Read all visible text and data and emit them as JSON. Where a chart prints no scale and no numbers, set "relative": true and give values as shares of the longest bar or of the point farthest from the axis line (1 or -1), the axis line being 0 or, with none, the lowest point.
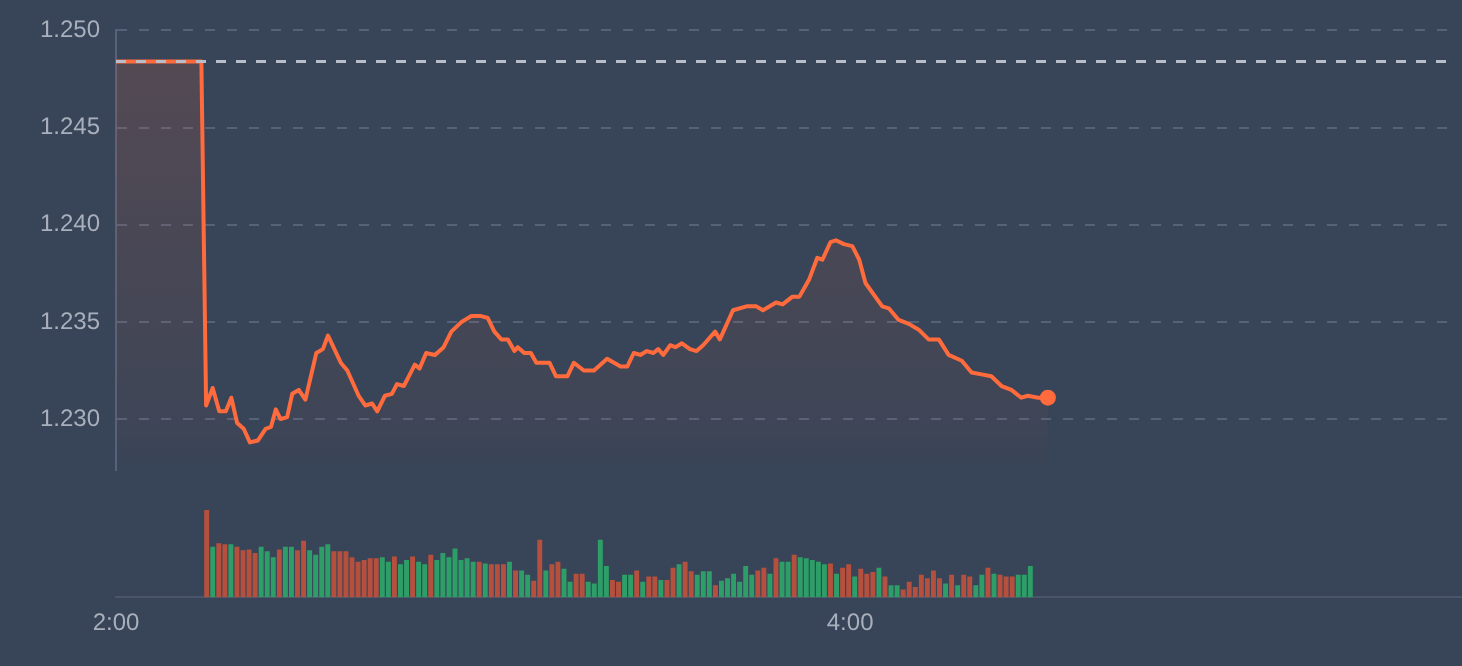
{
  "chart_data": [
    {
      "type": "area",
      "xlim": [
        2,
        5.667
      ],
      "ylim": [
        1.2274,
        1.25
      ],
      "yticks": [
        {
          "value": 1.23,
          "label": "1.230"
        },
        1.235,
        {
          "value": 1.24,
          "label": "1.240"
        },
        1.245,
        {
          "value": 1.25,
          "label": "1.250"
        }
      ],
      "tick_labels": "y",
      "grid": "y",
      "legend": false,
      "ref_lines": [
        {
          "axis": "y",
          "value": 1.2484,
          "line_style": "dashed",
          "color": "#b8bec9"
        }
      ],
      "series": [
        {
          "color": "#ff6b3d",
          "x": [
            2.0,
            2.234,
            2.247,
            2.265,
            2.283,
            2.301,
            2.316,
            2.332,
            2.35,
            2.367,
            2.389,
            2.41,
            2.425,
            2.438,
            2.451,
            2.469,
            2.483,
            2.501,
            2.519,
            2.549,
            2.567,
            2.581,
            2.616,
            2.634,
            2.665,
            2.683,
            2.702,
            2.716,
            2.737,
            2.756,
            2.77,
            2.789,
            2.819,
            2.832,
            2.85,
            2.874,
            2.898,
            2.919,
            2.947,
            2.974,
            3.001,
            3.019,
            3.037,
            3.056,
            3.074,
            3.092,
            3.101,
            3.119,
            3.137,
            3.152,
            3.173,
            3.188,
            3.206,
            3.237,
            3.255,
            3.282,
            3.31,
            3.346,
            3.383,
            3.401,
            3.419,
            3.437,
            3.455,
            3.473,
            3.486,
            3.5,
            3.519,
            3.533,
            3.551,
            3.573,
            3.591,
            3.609,
            3.642,
            3.655,
            3.691,
            3.728,
            3.755,
            3.773,
            3.809,
            3.827,
            3.854,
            3.873,
            3.9,
            3.922,
            3.936,
            3.958,
            3.973,
            3.995,
            4.018,
            4.037,
            4.054,
            4.1,
            4.118,
            4.145,
            4.173,
            4.2,
            4.227,
            4.255,
            4.282,
            4.318,
            4.345,
            4.372,
            4.399,
            4.427,
            4.454,
            4.481,
            4.499,
            4.527,
            4.554
          ],
          "values": [
            1.2484,
            1.2484,
            1.2307,
            1.2316,
            1.2304,
            1.2304,
            1.2311,
            1.2298,
            1.2295,
            1.2288,
            1.2289,
            1.2295,
            1.2296,
            1.2305,
            1.23,
            1.2301,
            1.2313,
            1.2315,
            1.231,
            1.2334,
            1.2336,
            1.2343,
            1.2329,
            1.2325,
            1.2312,
            1.2307,
            1.2308,
            1.2304,
            1.2312,
            1.2313,
            1.2318,
            1.2317,
            1.2328,
            1.2326,
            1.2334,
            1.2333,
            1.2337,
            1.2345,
            1.235,
            1.2353,
            1.2353,
            1.2352,
            1.2345,
            1.2341,
            1.2341,
            1.2335,
            1.2337,
            1.2334,
            1.2334,
            1.2329,
            1.2329,
            1.2329,
            1.2322,
            1.2322,
            1.2329,
            1.2325,
            1.2325,
            1.2331,
            1.2327,
            1.2327,
            1.2334,
            1.2333,
            1.2335,
            1.2334,
            1.2336,
            1.2333,
            1.2338,
            1.2337,
            1.2339,
            1.2336,
            1.2335,
            1.2338,
            1.2345,
            1.2341,
            1.2356,
            1.2358,
            1.2358,
            1.2356,
            1.236,
            1.2359,
            1.2363,
            1.2363,
            1.2372,
            1.2383,
            1.2382,
            1.2391,
            1.2392,
            1.239,
            1.2389,
            1.2382,
            1.237,
            1.2358,
            1.2357,
            1.2351,
            1.2349,
            1.2346,
            1.2341,
            1.2341,
            1.2333,
            1.233,
            1.2324,
            1.2323,
            1.2322,
            1.2317,
            1.2315,
            1.2311,
            1.2312,
            1.2311,
            1.2311
          ]
        }
      ]
    },
    {
      "type": "bar",
      "relative": true,
      "legend": false,
      "xlim": [
        2,
        5.667
      ],
      "xticks": [
        {
          "value": 2,
          "label": "2:00"
        },
        {
          "value": 4,
          "label": "4:00"
        }
      ],
      "x": [
        2.247,
        2.2635,
        2.28,
        2.2965,
        2.313,
        2.3295,
        2.346,
        2.3625,
        2.379,
        2.3955,
        2.412,
        2.4285,
        2.445,
        2.4615,
        2.478,
        2.4945,
        2.511,
        2.5275,
        2.544,
        2.5605,
        2.577,
        2.5935,
        2.61,
        2.6265,
        2.643,
        2.6595,
        2.676,
        2.6925,
        2.709,
        2.7255,
        2.742,
        2.7585,
        2.775,
        2.7915,
        2.808,
        2.8245,
        2.841,
        2.8575,
        2.874,
        2.8905,
        2.907,
        2.9235,
        2.94,
        2.9565,
        2.973,
        2.9895,
        3.006,
        3.0225,
        3.039,
        3.0555,
        3.072,
        3.0885,
        3.105,
        3.1215,
        3.138,
        3.1545,
        3.171,
        3.1875,
        3.204,
        3.2205,
        3.237,
        3.2535,
        3.27,
        3.2865,
        3.303,
        3.3195,
        3.336,
        3.3525,
        3.369,
        3.3855,
        3.402,
        3.4185,
        3.435,
        3.4515,
        3.468,
        3.4845,
        3.501,
        3.5175,
        3.534,
        3.5505,
        3.567,
        3.5835,
        3.6,
        3.6165,
        3.633,
        3.6495,
        3.666,
        3.6825,
        3.699,
        3.7155,
        3.732,
        3.7485,
        3.765,
        3.7815,
        3.798,
        3.8145,
        3.831,
        3.8475,
        3.864,
        3.8805,
        3.897,
        3.9135,
        3.93,
        3.9465,
        3.963,
        3.9795,
        3.996,
        4.0125,
        4.029,
        4.0455,
        4.062,
        4.0785,
        4.095,
        4.1115,
        4.128,
        4.1445,
        4.161,
        4.1775,
        4.194,
        4.2105,
        4.227,
        4.2435,
        4.26,
        4.2765,
        4.293,
        4.3095,
        4.326,
        4.3425,
        4.359,
        4.3755,
        4.392,
        4.4085,
        4.425,
        4.4415,
        4.458,
        4.4745,
        4.491
      ],
      "values": [
        1.0,
        0.57,
        0.61,
        0.6,
        0.6,
        0.57,
        0.53,
        0.54,
        0.5,
        0.57,
        0.52,
        0.45,
        0.54,
        0.57,
        0.57,
        0.53,
        0.64,
        0.53,
        0.48,
        0.57,
        0.6,
        0.52,
        0.52,
        0.52,
        0.45,
        0.4,
        0.42,
        0.44,
        0.44,
        0.45,
        0.4,
        0.46,
        0.37,
        0.42,
        0.46,
        0.4,
        0.37,
        0.48,
        0.42,
        0.5,
        0.45,
        0.55,
        0.42,
        0.44,
        0.4,
        0.4,
        0.38,
        0.37,
        0.37,
        0.37,
        0.4,
        0.3,
        0.3,
        0.25,
        0.18,
        0.65,
        0.3,
        0.37,
        0.4,
        0.32,
        0.17,
        0.26,
        0.26,
        0.17,
        0.15,
        0.65,
        0.35,
        0.19,
        0.17,
        0.25,
        0.25,
        0.3,
        0.17,
        0.23,
        0.23,
        0.19,
        0.19,
        0.33,
        0.37,
        0.4,
        0.29,
        0.25,
        0.29,
        0.29,
        0.13,
        0.18,
        0.21,
        0.26,
        0.17,
        0.35,
        0.25,
        0.3,
        0.33,
        0.26,
        0.44,
        0.4,
        0.4,
        0.48,
        0.45,
        0.44,
        0.42,
        0.4,
        0.37,
        0.38,
        0.26,
        0.33,
        0.37,
        0.23,
        0.32,
        0.26,
        0.28,
        0.33,
        0.23,
        0.13,
        0.13,
        0.08,
        0.17,
        0.11,
        0.25,
        0.21,
        0.3,
        0.21,
        0.15,
        0.25,
        0.13,
        0.25,
        0.23,
        0.13,
        0.25,
        0.33,
        0.26,
        0.25,
        0.23,
        0.23,
        0.25,
        0.25,
        0.35
      ],
      "colors": [
        "#b5503f",
        "#2e9e68",
        "#b5503f",
        "#b5503f",
        "#2e9e68",
        "#b5503f",
        "#b5503f",
        "#b5503f",
        "#b5503f",
        "#2e9e68",
        "#2e9e68",
        "#2e9e68",
        "#b5503f",
        "#2e9e68",
        "#2e9e68",
        "#b5503f",
        "#b5503f",
        "#2e9e68",
        "#2e9e68",
        "#2e9e68",
        "#2e9e68",
        "#b5503f",
        "#b5503f",
        "#b5503f",
        "#b5503f",
        "#b5503f",
        "#b5503f",
        "#b5503f",
        "#b5503f",
        "#2e9e68",
        "#2e9e68",
        "#b5503f",
        "#2e9e68",
        "#2e9e68",
        "#b5503f",
        "#2e9e68",
        "#2e9e68",
        "#b5503f",
        "#2e9e68",
        "#2e9e68",
        "#2e9e68",
        "#2e9e68",
        "#2e9e68",
        "#2e9e68",
        "#2e9e68",
        "#b5503f",
        "#2e9e68",
        "#b5503f",
        "#b5503f",
        "#b5503f",
        "#2e9e68",
        "#b5503f",
        "#2e9e68",
        "#2e9e68",
        "#b5503f",
        "#b5503f",
        "#2e9e68",
        "#b5503f",
        "#b5503f",
        "#2e9e68",
        "#2e9e68",
        "#b5503f",
        "#b5503f",
        "#2e9e68",
        "#2e9e68",
        "#2e9e68",
        "#2e9e68",
        "#b5503f",
        "#b5503f",
        "#2e9e68",
        "#2e9e68",
        "#b5503f",
        "#2e9e68",
        "#b5503f",
        "#b5503f",
        "#2e9e68",
        "#b5503f",
        "#b5503f",
        "#2e9e68",
        "#b5503f",
        "#b5503f",
        "#2e9e68",
        "#2e9e68",
        "#2e9e68",
        "#b5503f",
        "#2e9e68",
        "#2e9e68",
        "#2e9e68",
        "#2e9e68",
        "#2e9e68",
        "#2e9e68",
        "#b5503f",
        "#b5503f",
        "#2e9e68",
        "#b5503f",
        "#2e9e68",
        "#2e9e68",
        "#b5503f",
        "#2e9e68",
        "#2e9e68",
        "#2e9e68",
        "#2e9e68",
        "#2e9e68",
        "#b5503f",
        "#2e9e68",
        "#b5503f",
        "#b5503f",
        "#2e9e68",
        "#b5503f",
        "#b5503f",
        "#b5503f",
        "#2e9e68",
        "#b5503f",
        "#2e9e68",
        "#2e9e68",
        "#b5503f",
        "#b5503f",
        "#b5503f",
        "#b5503f",
        "#b5503f",
        "#b5503f",
        "#b5503f",
        "#2e9e68",
        "#b5503f",
        "#2e9e68",
        "#b5503f",
        "#b5503f",
        "#2e9e68",
        "#2e9e68",
        "#b5503f",
        "#2e9e68",
        "#b5503f",
        "#b5503f",
        "#b5503f",
        "#2e9e68",
        "#2e9e68",
        "#2e9e68"
      ]
    }
  ]
}
